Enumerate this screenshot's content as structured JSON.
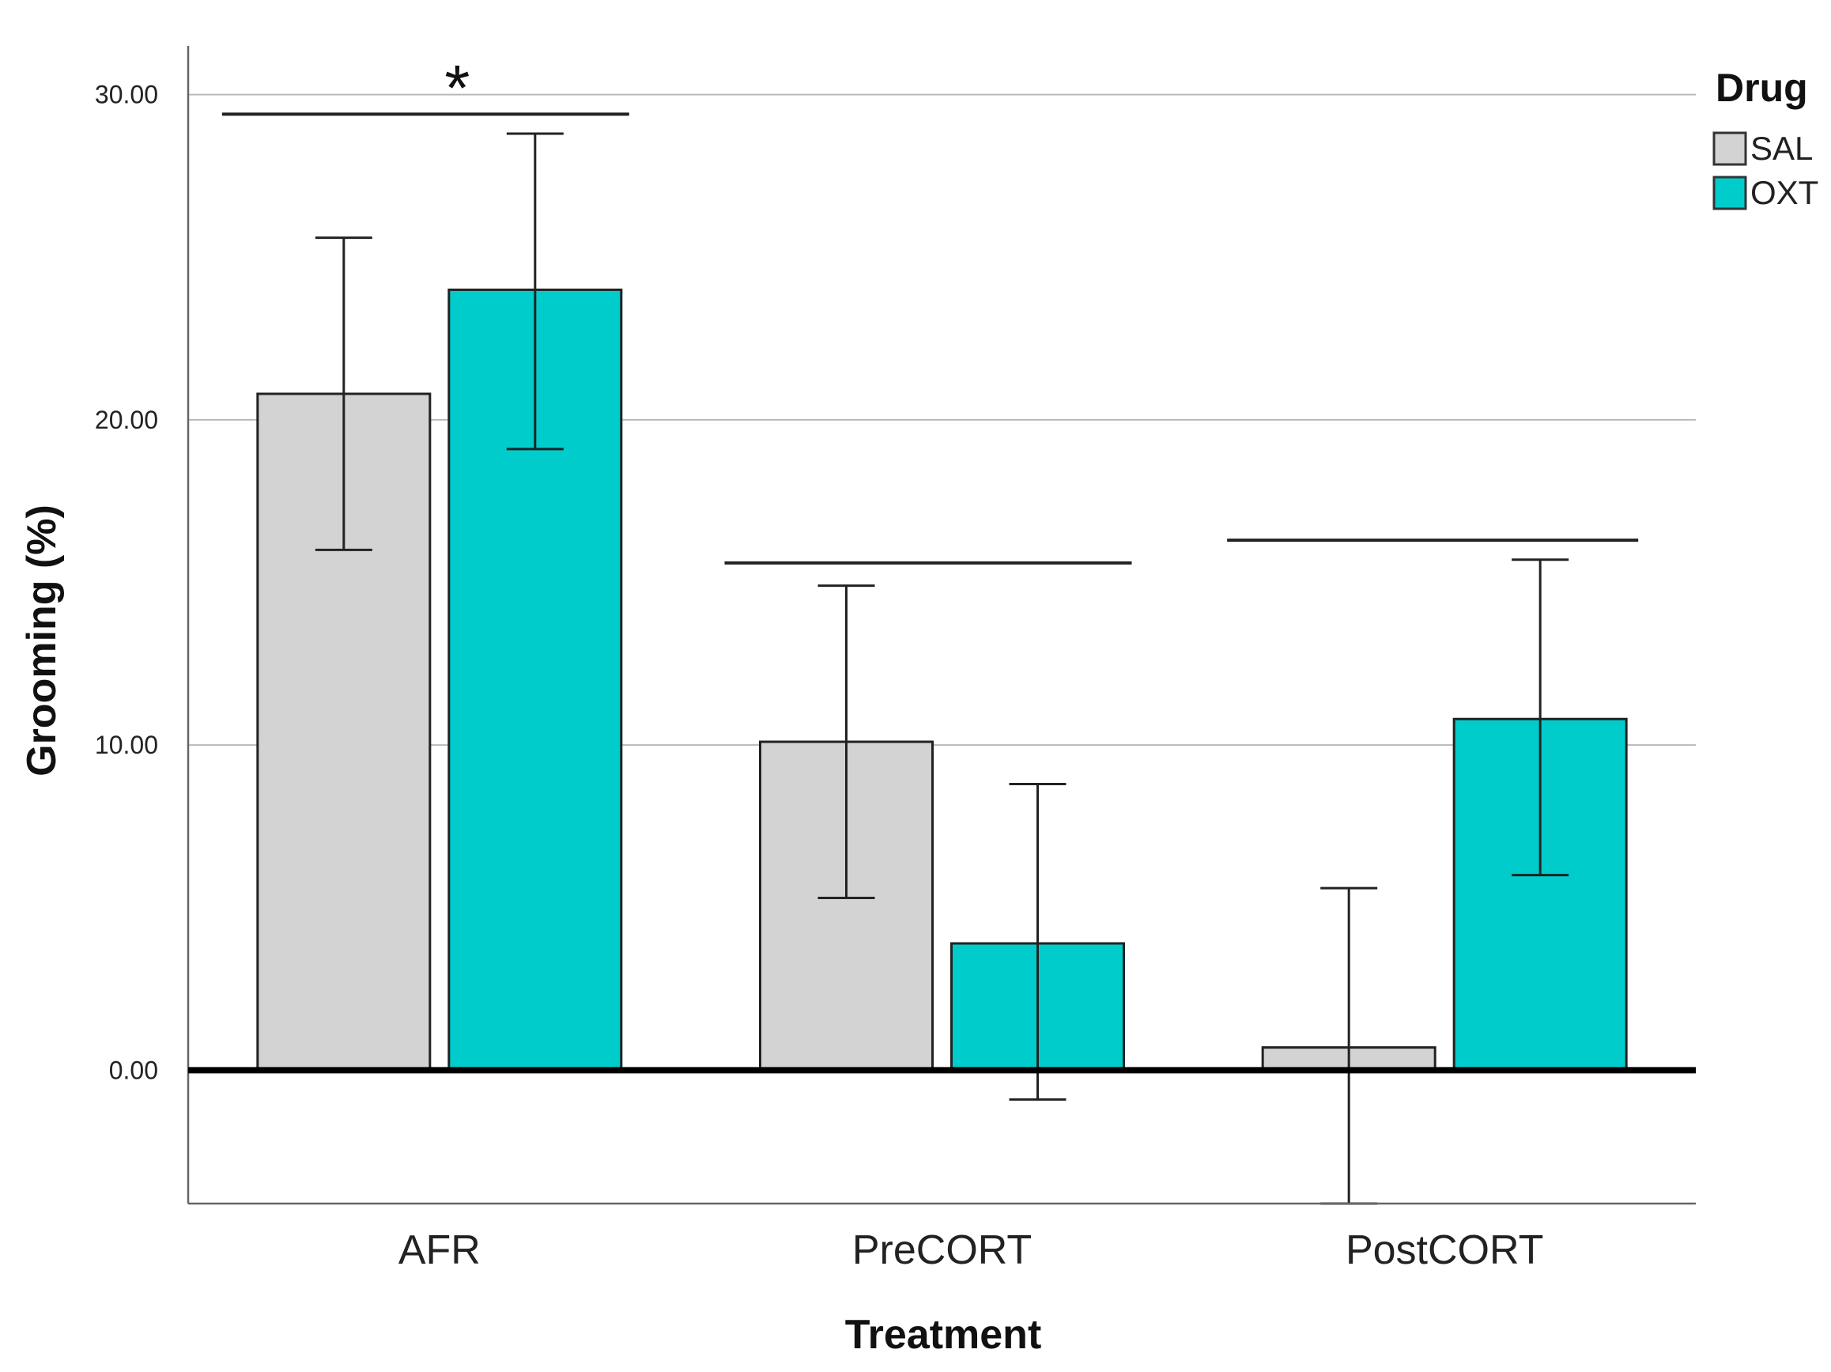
{
  "chart_data": {
    "type": "bar",
    "title": "",
    "xlabel": "Treatment",
    "ylabel": "Grooming (%)",
    "categories": [
      "AFR",
      "PreCORT",
      "PostCORT"
    ],
    "ylim": [
      -4.1,
      31.5
    ],
    "yticks": [
      0,
      10,
      20,
      30
    ],
    "ytick_labels": [
      "0.00",
      "10.00",
      "20.00",
      "30.00"
    ],
    "grid": true,
    "legend": {
      "title": "Drug",
      "placement": "top-right",
      "entries": [
        {
          "name": "SAL",
          "color": "#d3d3d3"
        },
        {
          "name": "OXT",
          "color": "#00cccc"
        }
      ]
    },
    "series": [
      {
        "name": "SAL",
        "color": "#d3d3d3",
        "values": [
          20.8,
          10.1,
          0.7
        ],
        "error_low": [
          16.0,
          5.3,
          -4.1
        ],
        "error_high": [
          25.6,
          14.9,
          5.6
        ]
      },
      {
        "name": "OXT",
        "color": "#00cccc",
        "values": [
          24.0,
          3.9,
          10.8
        ],
        "error_low": [
          19.1,
          -0.9,
          6.0
        ],
        "error_high": [
          28.8,
          8.8,
          15.7
        ]
      }
    ],
    "annotations": [
      {
        "category": "AFR",
        "level": 29.4,
        "label": "*"
      },
      {
        "category": "PreCORT",
        "level": 15.6,
        "label": ""
      },
      {
        "category": "PostCORT",
        "level": 16.3,
        "label": ""
      }
    ]
  }
}
